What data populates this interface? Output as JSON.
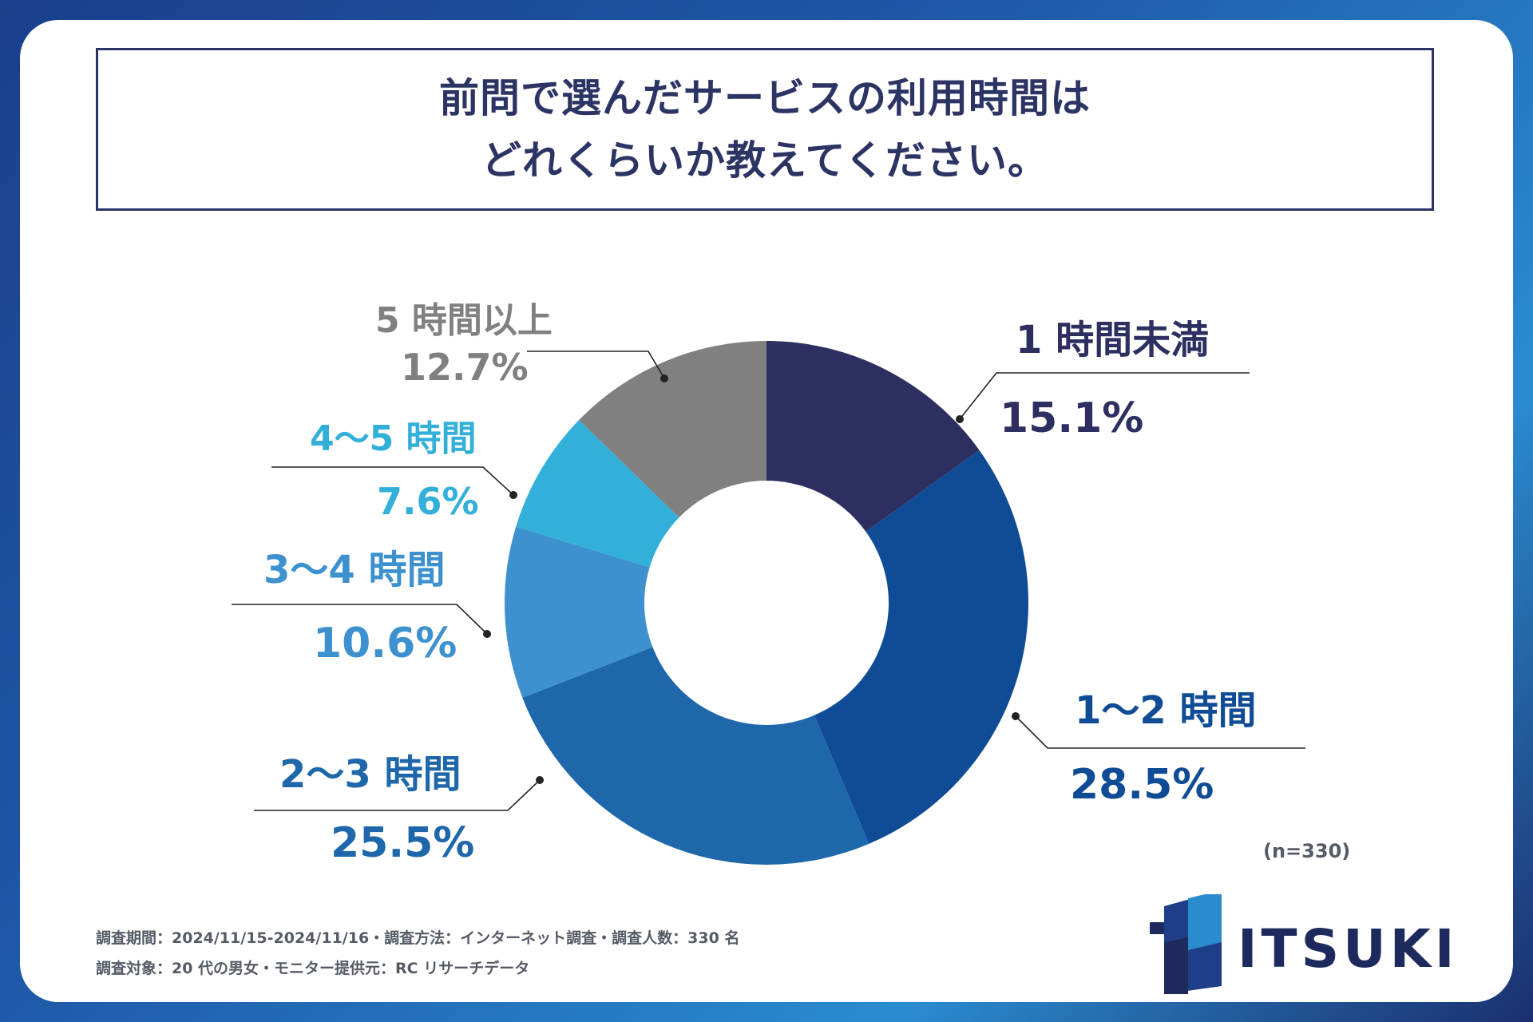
{
  "title": {
    "line1": "前問で選んだサービスの利用時間は",
    "line2": "どれくらいか教えてください。"
  },
  "chart_data": {
    "type": "pie",
    "subtype": "donut",
    "title": "前問で選んだサービスの利用時間はどれくらいか教えてください。",
    "categories": [
      "1 時間未満",
      "1〜2 時間",
      "2〜3 時間",
      "3〜4 時間",
      "4〜5 時間",
      "5 時間以上"
    ],
    "values": [
      15.1,
      28.5,
      25.5,
      10.6,
      7.6,
      12.7
    ],
    "value_labels": [
      "15.1%",
      "28.5%",
      "25.5%",
      "10.6%",
      "7.6%",
      "12.7%"
    ],
    "colors": [
      "#2c2f60",
      "#0f4c95",
      "#1e67aa",
      "#3d91cf",
      "#33b0d9",
      "#808080"
    ],
    "unit": "%"
  },
  "sample_note": "(n=330)",
  "footer": {
    "line1": "調査期間：2024/11/15-2024/11/16・調査方法：インターネット調査・調査人数：330 名",
    "line2": "調査対象：20 代の男女・モニター提供元：RC リサーチデータ"
  },
  "logo": {
    "text": "ITSUKI",
    "color": "#1e2a5e"
  }
}
